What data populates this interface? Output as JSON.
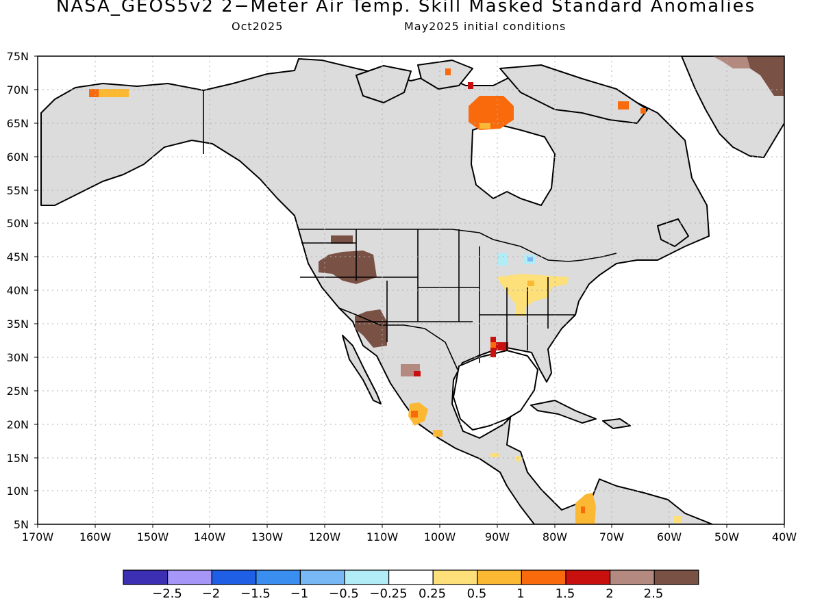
{
  "title": "NASA_GEOS5v2 2−Meter Air Temp. Skill Masked Standard Anomalies",
  "subtitle_left": "Oct2025",
  "subtitle_right": "May2025 initial conditions",
  "lat_labels": [
    "75N",
    "70N",
    "65N",
    "60N",
    "55N",
    "50N",
    "45N",
    "40N",
    "35N",
    "30N",
    "25N",
    "20N",
    "15N",
    "10N",
    "5N"
  ],
  "lon_labels": [
    "170W",
    "160W",
    "150W",
    "140W",
    "130W",
    "120W",
    "110W",
    "100W",
    "90W",
    "80W",
    "70W",
    "60W",
    "50W",
    "40W"
  ],
  "colorbar": {
    "colors": [
      "#3c2fb3",
      "#a596f7",
      "#1f5fe6",
      "#3a8ef0",
      "#78b8f4",
      "#b2ecf7",
      "#ffffff",
      "#fde07a",
      "#fbb832",
      "#f96a0d",
      "#c8100f",
      "#b48a80",
      "#7a5245"
    ],
    "labels": [
      "−2.5",
      "−2",
      "−1.5",
      "−1",
      "−0.5",
      "−0.25",
      "0.25",
      "0.5",
      "1",
      "1.5",
      "2",
      "2.5"
    ]
  },
  "colors": {
    "land_masked": "#dcdcdc",
    "ocean": "#ffffff",
    "coast": "#000000",
    "grid": "#b0b0b0"
  }
}
